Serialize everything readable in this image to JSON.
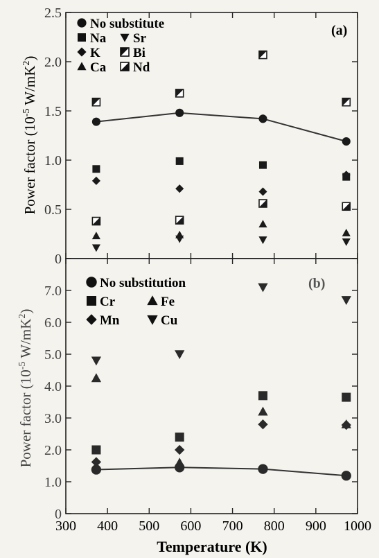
{
  "figure": {
    "xlabel": "Temperature (K)",
    "xticks": [
      "300",
      "400",
      "500",
      "600",
      "700",
      "800",
      "900",
      "1000"
    ]
  },
  "chart_data": [
    {
      "type": "scatter",
      "panel_label": "(a)",
      "ylabel_main": "Power factor (10",
      "ylabel_exp": "-5",
      "ylabel_unit": " W/mK",
      "ylabel_sq": "2",
      "ylabel_close": ")",
      "xlim": [
        300,
        1000
      ],
      "ylim": [
        0,
        2.5
      ],
      "yticks": [
        "0",
        "0.5",
        "1.0",
        "1.5",
        "2.0",
        "2.5"
      ],
      "ytick_values": [
        0,
        0.5,
        1.0,
        1.5,
        2.0,
        2.5
      ],
      "legend": [
        {
          "name": "No substitute",
          "marker": "circle",
          "col": 0,
          "row": 0
        },
        {
          "name": "Na",
          "marker": "square",
          "col": 0,
          "row": 1
        },
        {
          "name": "K",
          "marker": "diamond",
          "col": 0,
          "row": 2
        },
        {
          "name": "Ca",
          "marker": "triangle-up",
          "col": 0,
          "row": 3
        },
        {
          "name": "Sr",
          "marker": "triangle-down",
          "col": 1,
          "row": 1
        },
        {
          "name": "Bi",
          "marker": "square-half",
          "col": 1,
          "row": 2
        },
        {
          "name": "Nd",
          "marker": "square-half-alt",
          "col": 1,
          "row": 3
        }
      ],
      "series": [
        {
          "name": "No substitute",
          "marker": "circle",
          "line": true,
          "x": [
            373,
            573,
            773,
            973
          ],
          "y": [
            1.39,
            1.48,
            1.42,
            1.19
          ]
        },
        {
          "name": "Na",
          "marker": "square",
          "x": [
            373,
            573,
            773,
            973
          ],
          "y": [
            0.91,
            0.99,
            0.95,
            0.83
          ]
        },
        {
          "name": "K",
          "marker": "diamond",
          "x": [
            373,
            573,
            773,
            973
          ],
          "y": [
            0.79,
            0.71,
            0.68,
            0.85
          ]
        },
        {
          "name": "Ca",
          "marker": "triangle-up",
          "x": [
            373,
            573,
            773,
            973
          ],
          "y": [
            0.23,
            0.24,
            0.35,
            0.26
          ]
        },
        {
          "name": "Sr",
          "marker": "triangle-down",
          "x": [
            373,
            573,
            773,
            973
          ],
          "y": [
            0.11,
            0.2,
            0.19,
            0.17
          ]
        },
        {
          "name": "Bi",
          "marker": "square-half",
          "x": [
            373,
            573,
            773,
            973
          ],
          "y": [
            1.59,
            1.68,
            2.07,
            1.59
          ]
        },
        {
          "name": "Nd",
          "marker": "square-half-alt",
          "x": [
            373,
            573,
            773,
            973
          ],
          "y": [
            0.38,
            0.39,
            0.56,
            0.53
          ]
        }
      ]
    },
    {
      "type": "scatter",
      "panel_label": "(b)",
      "ylabel_main": "Power factor (10",
      "ylabel_exp": "-5",
      "ylabel_unit": " W/mK",
      "ylabel_sq": "2",
      "ylabel_close": ")",
      "xlim": [
        300,
        1000
      ],
      "ylim": [
        0,
        8.0
      ],
      "yticks": [
        "0",
        "1.0",
        "2.0",
        "3.0",
        "4.0",
        "5.0",
        "6.0",
        "7.0"
      ],
      "ytick_values": [
        0,
        1.0,
        2.0,
        3.0,
        4.0,
        5.0,
        6.0,
        7.0
      ],
      "legend": [
        {
          "name": "No substitution",
          "marker": "circle",
          "col": 0,
          "row": 0
        },
        {
          "name": "Cr",
          "marker": "square",
          "col": 0,
          "row": 1
        },
        {
          "name": "Mn",
          "marker": "diamond",
          "col": 0,
          "row": 2
        },
        {
          "name": "Fe",
          "marker": "triangle-up",
          "col": 1,
          "row": 1
        },
        {
          "name": "Cu",
          "marker": "triangle-down",
          "col": 1,
          "row": 2
        }
      ],
      "series": [
        {
          "name": "No substitution",
          "marker": "circle",
          "line": true,
          "x": [
            373,
            573,
            773,
            973
          ],
          "y": [
            1.38,
            1.45,
            1.4,
            1.19
          ]
        },
        {
          "name": "Cr",
          "marker": "square",
          "x": [
            373,
            573,
            773,
            973
          ],
          "y": [
            2.0,
            2.4,
            3.7,
            3.65
          ]
        },
        {
          "name": "Mn",
          "marker": "diamond",
          "x": [
            373,
            573,
            773,
            973
          ],
          "y": [
            1.62,
            2.0,
            2.8,
            2.78
          ]
        },
        {
          "name": "Fe",
          "marker": "triangle-up",
          "x": [
            373,
            573,
            773,
            973
          ],
          "y": [
            4.25,
            1.6,
            3.2,
            2.8
          ]
        },
        {
          "name": "Cu",
          "marker": "triangle-down",
          "x": [
            373,
            573,
            773,
            973
          ],
          "y": [
            4.8,
            5.0,
            7.1,
            6.7
          ]
        }
      ]
    }
  ]
}
